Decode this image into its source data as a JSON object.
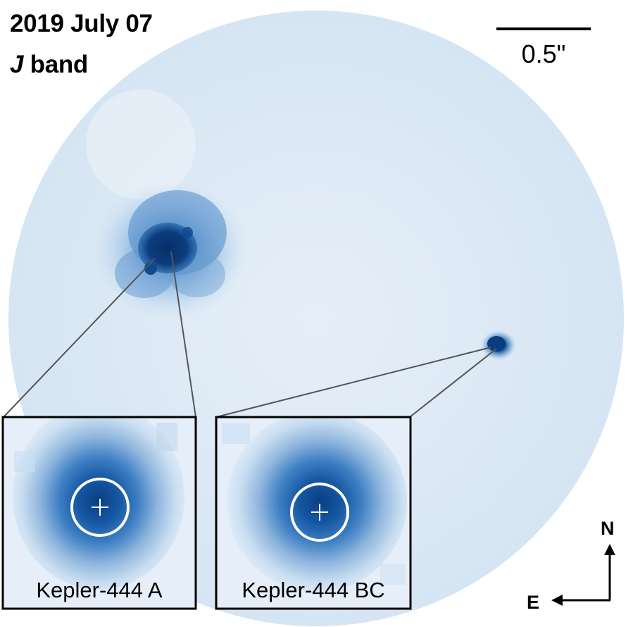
{
  "title": {
    "date": "2019 July 07",
    "band_letter": "J",
    "band_word": "band"
  },
  "scale_bar": {
    "label": "0.5\""
  },
  "insets": [
    {
      "label": "Kepler-444 A"
    },
    {
      "label": "Kepler-444 BC"
    }
  ],
  "compass": {
    "north": "N",
    "east": "E"
  },
  "colors": {
    "background_field": "#dbe8f5",
    "star_core": "#0a3d7f",
    "star_halo": "#2f6fb4",
    "inset_outer": "#e3edf8",
    "inset_mid": "#8fb6dd",
    "inset_core": "#0f4f97",
    "marker": "#ffffff",
    "leader_line": "#555555"
  }
}
